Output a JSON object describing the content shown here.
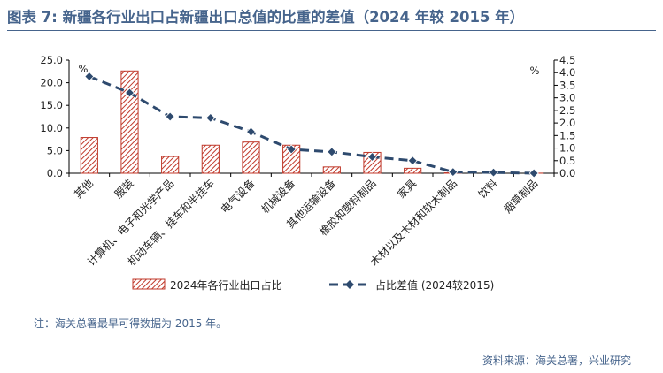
{
  "title": "图表 7:   新疆各行业出口占新疆出口总值的比重的差值（2024 年较 2015 年）",
  "note": "注：海关总署最早可得数据为 2015 年。",
  "source": "资料来源：海关总署，兴业研究",
  "chart_data": {
    "type": "bar+line",
    "categories": [
      "其他",
      "服装",
      "计算机、电子和光学产品",
      "机动车辆、挂车和半挂车",
      "电气设备",
      "机械设备",
      "其他运输设备",
      "橡胶和塑料制品",
      "家具",
      "木材以及木材和软木制品",
      "饮料",
      "烟草制品"
    ],
    "series": [
      {
        "name": "2024年各行业出口占比",
        "type": "bar",
        "axis": "left",
        "color": "#c0392b",
        "values": [
          7.9,
          22.6,
          3.7,
          6.2,
          6.9,
          6.2,
          1.4,
          4.6,
          1.1,
          0.1,
          0.05,
          0.02
        ]
      },
      {
        "name": "占比差值 (2024较2015)",
        "type": "line",
        "axis": "right",
        "color": "#2e4a6e",
        "values": [
          3.85,
          3.2,
          2.25,
          2.2,
          1.65,
          0.95,
          0.85,
          0.65,
          0.5,
          0.05,
          0.03,
          0.0
        ]
      }
    ],
    "left_axis": {
      "unit": "%",
      "min": 0,
      "max": 25,
      "step": 5,
      "decimals": 1
    },
    "right_axis": {
      "unit": "%",
      "min": 0,
      "max": 4.5,
      "step": 0.5,
      "decimals": 1
    },
    "legend_position": "bottom",
    "grid": false
  }
}
